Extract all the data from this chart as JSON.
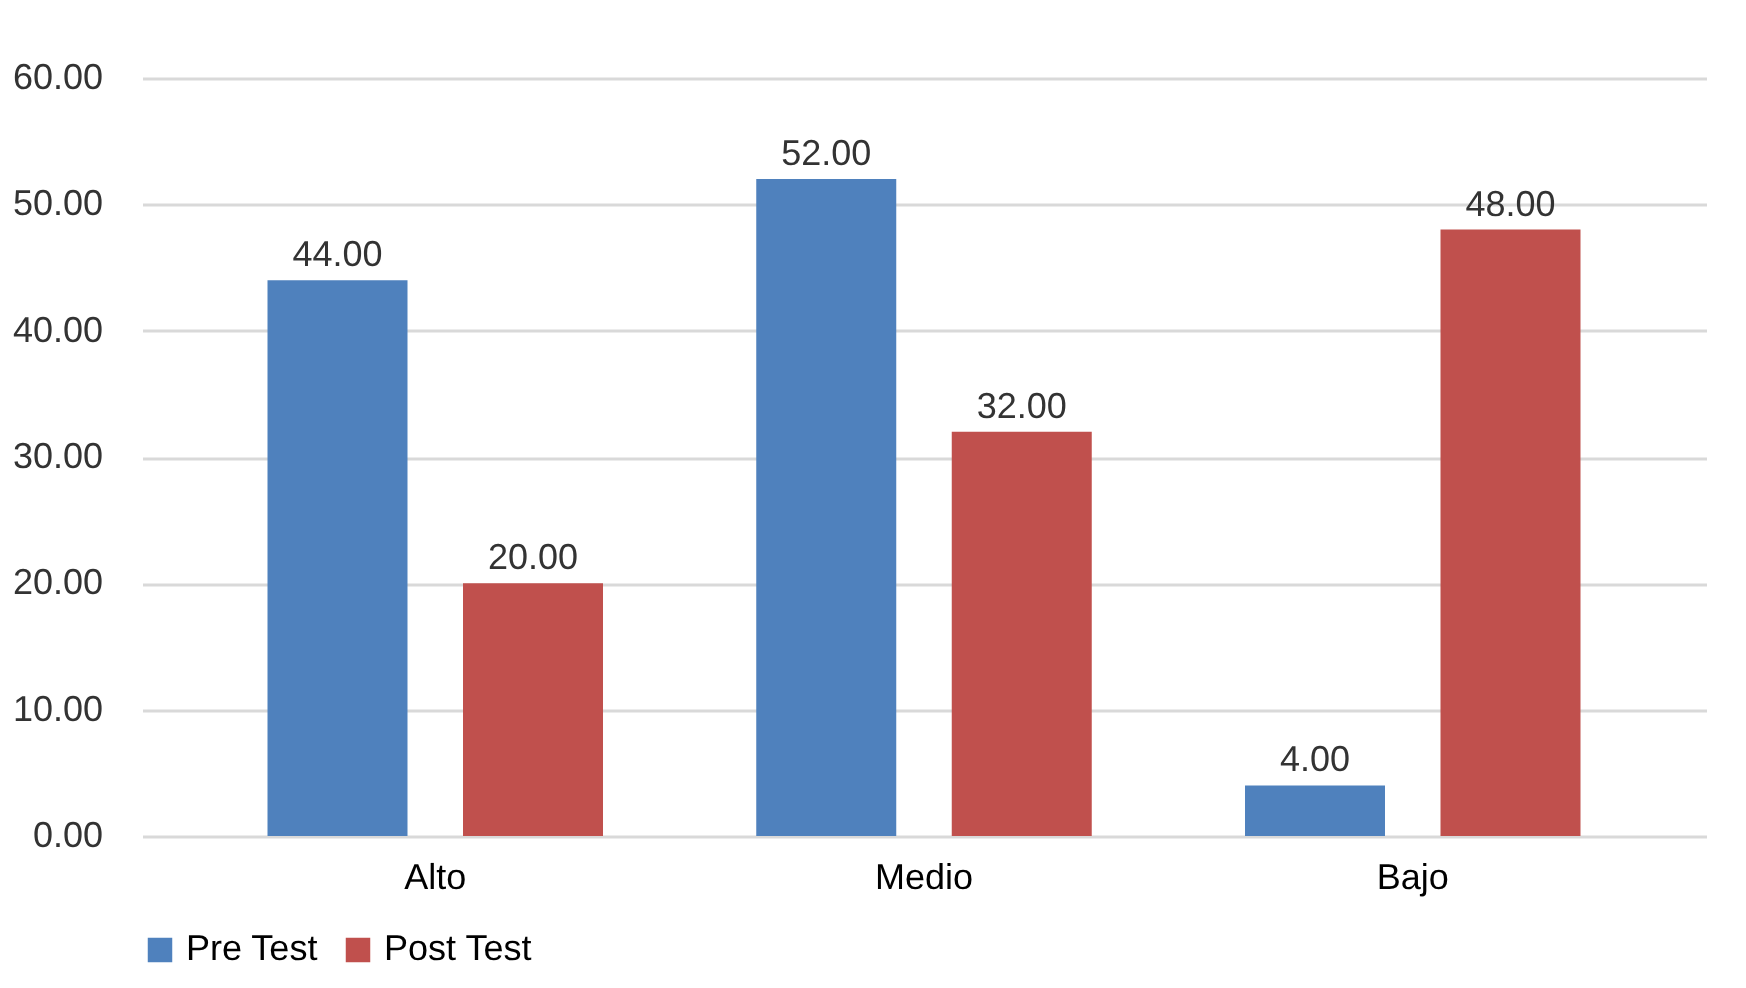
{
  "chart_data": {
    "type": "bar",
    "categories": [
      "Alto",
      "Medio",
      "Bajo"
    ],
    "series": [
      {
        "name": "Pre Test",
        "color": "#4f81bd",
        "values": [
          44,
          52,
          4
        ],
        "value_labels": [
          "44.00",
          "52.00",
          "4.00"
        ]
      },
      {
        "name": "Post Test",
        "color": "#c0504d",
        "values": [
          20,
          32,
          48
        ],
        "value_labels": [
          "20.00",
          "32.00",
          "48.00"
        ]
      }
    ],
    "ylim": [
      0,
      60
    ],
    "yticks": [
      {
        "value": 0,
        "label": "0.00"
      },
      {
        "value": 10,
        "label": "10.00"
      },
      {
        "value": 20,
        "label": "20.00"
      },
      {
        "value": 30,
        "label": "30.00"
      },
      {
        "value": 40,
        "label": "40.00"
      },
      {
        "value": 50,
        "label": "50.00"
      },
      {
        "value": 60,
        "label": "60.00"
      }
    ],
    "grid": "y",
    "legend": "bottom"
  }
}
